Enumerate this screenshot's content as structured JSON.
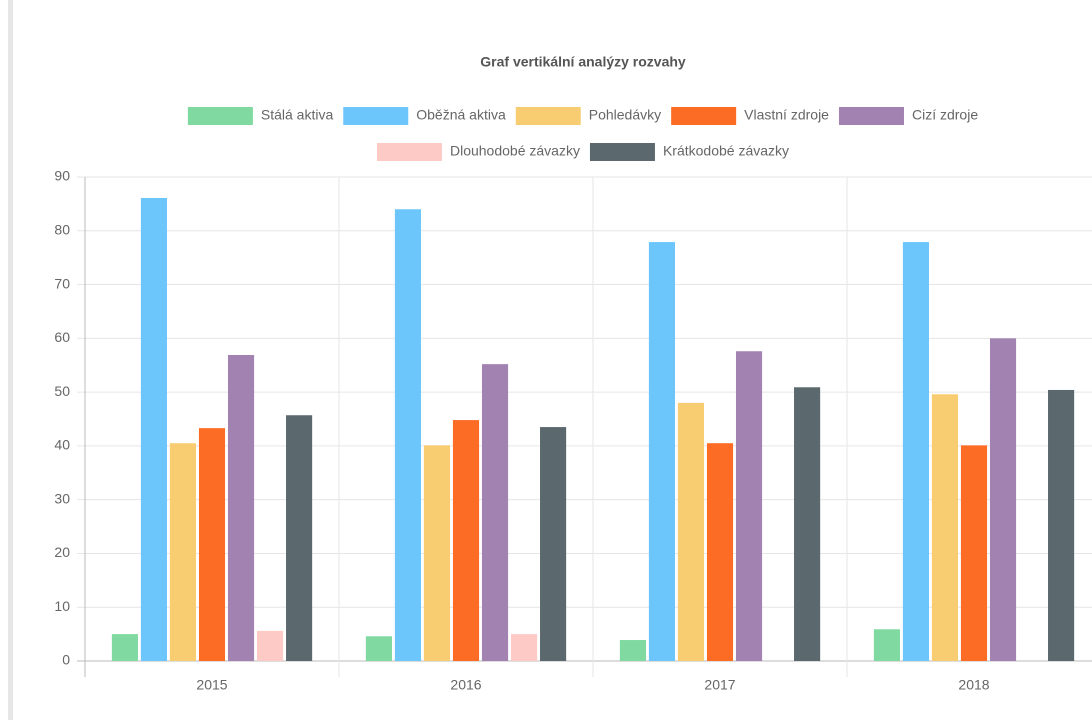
{
  "chart_data": {
    "type": "bar",
    "title": "Graf vertikální analýzy rozvahy",
    "categories": [
      "2015",
      "2016",
      "2017",
      "2018"
    ],
    "series": [
      {
        "name": "Stálá aktiva",
        "color": "#80d9a1",
        "values": [
          5.0,
          4.6,
          3.9,
          5.9
        ]
      },
      {
        "name": "Oběžná aktiva",
        "color": "#6cc5fb",
        "values": [
          86.1,
          84.0,
          77.9,
          77.9
        ]
      },
      {
        "name": "Pohledávky",
        "color": "#f8cd72",
        "values": [
          40.5,
          40.1,
          48.0,
          49.6
        ]
      },
      {
        "name": "Vlastní zdroje",
        "color": "#fd6c24",
        "values": [
          43.3,
          44.8,
          40.5,
          40.1
        ]
      },
      {
        "name": "Cizí zdroje",
        "color": "#a182b1",
        "values": [
          56.9,
          55.2,
          57.6,
          60.0
        ]
      },
      {
        "name": "Dlouhodobé závazky",
        "color": "#fdcac6",
        "values": [
          5.6,
          5.0,
          0,
          0
        ]
      },
      {
        "name": "Krátkodobé závazky",
        "color": "#5b696e",
        "values": [
          45.7,
          43.5,
          50.9,
          50.4
        ]
      }
    ],
    "ylim": [
      0,
      90
    ],
    "yticks": [
      0,
      10,
      20,
      30,
      40,
      50,
      60,
      70,
      80,
      90
    ],
    "grid": true,
    "legend": "top"
  }
}
